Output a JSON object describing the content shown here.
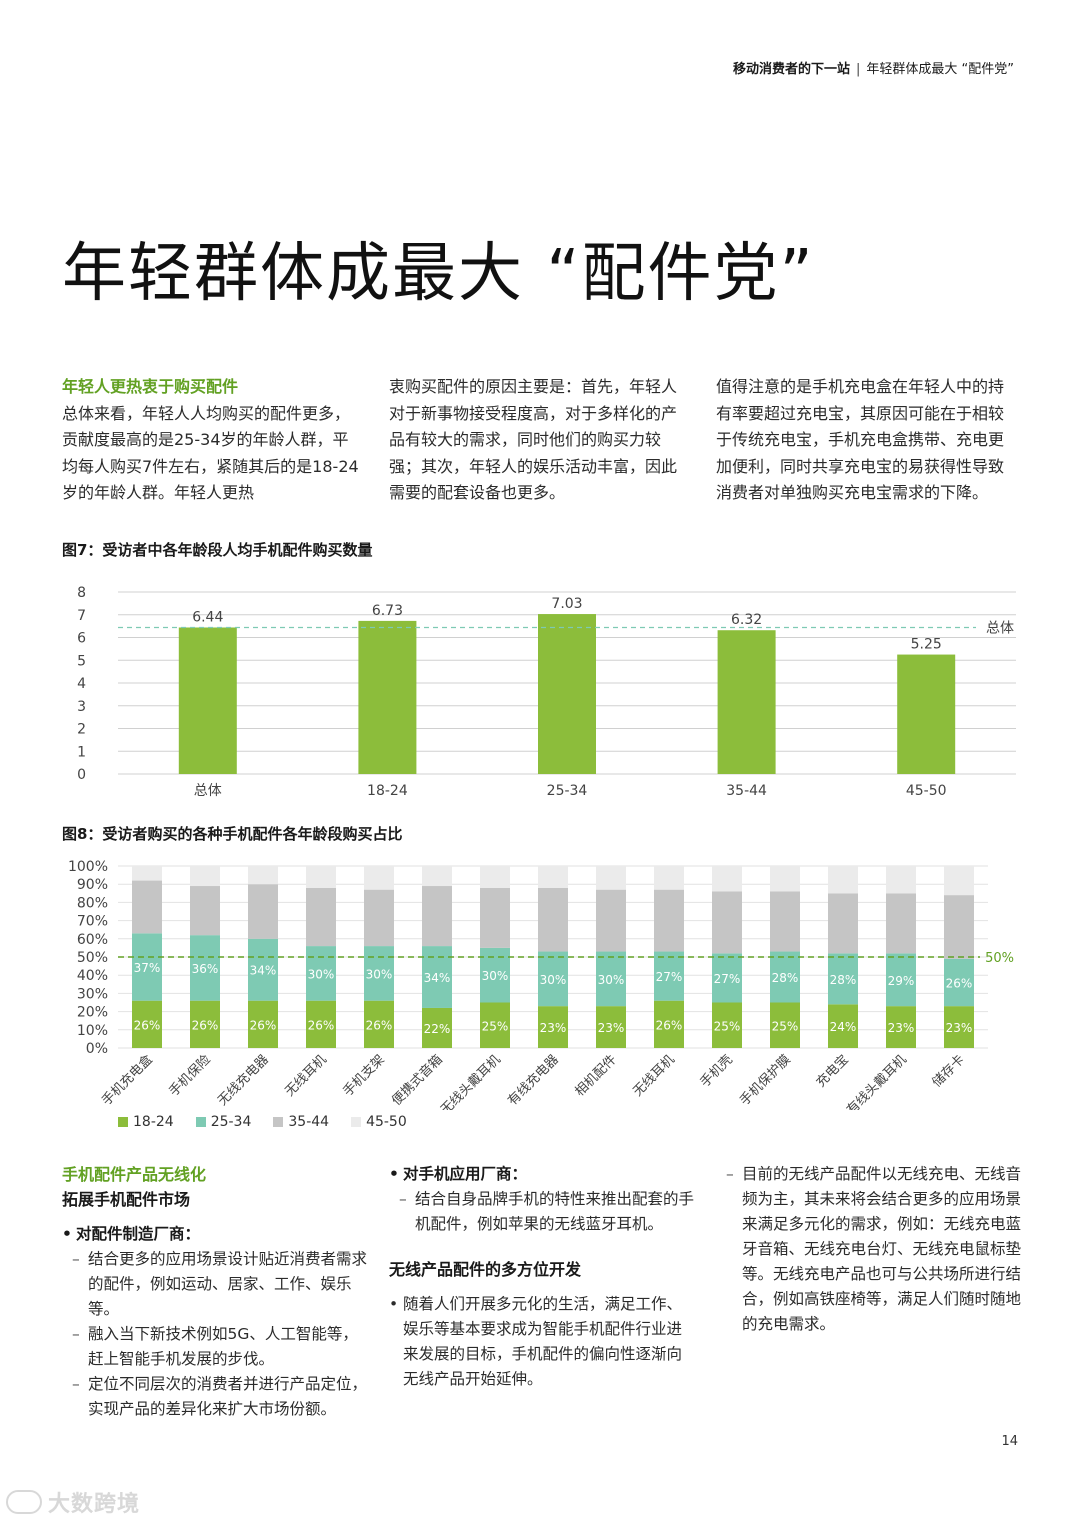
{
  "header": {
    "left": "移动消费者的下一站",
    "sep": "|",
    "right": "年轻群体成最大 “配件党”"
  },
  "title": "年轻群体成最大 “配件党”",
  "intro": {
    "heading": "年轻人更热衷于购买配件",
    "col1_text": "总体来看，年轻人人均购买的配件更多，贡献度最高的是25-34岁的年龄人群，平均每人购买7件左右，紧随其后的是18-24岁的年龄人群。年轻人更热",
    "col2_text": "衷购买配件的原因主要是：首先，年轻人对于新事物接受程度高，对于多样化的产品有较大的需求，同时他们的购买力较强；其次，年轻人的娱乐活动丰富，因此需要的配套设备也更多。",
    "col3_text": "值得注意的是手机充电盒在年轻人中的持有率要超过充电宝，其原因可能在于相较于传统充电宝，手机充电盒携带、充电更加便利，同时共享充电宝的易获得性导致消费者对单独购买充电宝需求的下降。"
  },
  "fig7_title": "图7：受访者中各年龄段人均手机配件购买数量",
  "fig8_title": "图8：受访者购买的各种手机配件各年龄段购买占比",
  "colors": {
    "green": "#8cbd3b",
    "teal": "#7ecab3",
    "gray": "#c5c5c5",
    "light": "#ebebeb",
    "accent": "#62a123"
  },
  "chart_data": [
    {
      "type": "bar",
      "title": "图7：受访者中各年龄段人均手机配件购买数量",
      "categories": [
        "总体",
        "18-24",
        "25-34",
        "35-44",
        "45-50"
      ],
      "values": [
        6.44,
        6.73,
        7.03,
        6.32,
        5.25
      ],
      "value_labels": [
        "6.44",
        "6.73",
        "7.03",
        "6.32",
        "5.25"
      ],
      "ylim": [
        0,
        8
      ],
      "yticks": [
        "0",
        "1",
        "2",
        "3",
        "4",
        "5",
        "6",
        "7",
        "8"
      ],
      "reference_line": {
        "value": 6.44,
        "label": "总体"
      },
      "grid": true
    },
    {
      "type": "bar",
      "stacked": true,
      "title": "图8：受访者购买的各种手机配件各年龄段购买占比",
      "categories": [
        "手机充电盒",
        "手机保险",
        "无线充电器",
        "无线耳机",
        "手机支架",
        "便携式音箱",
        "无线头戴耳机",
        "有线充电器",
        "相机配件",
        "无线耳机",
        "手机壳",
        "手机保护膜",
        "充电宝",
        "有线头戴耳机",
        "储存卡"
      ],
      "series": [
        {
          "name": "18-24",
          "values": [
            26,
            26,
            26,
            26,
            26,
            22,
            25,
            23,
            23,
            26,
            25,
            25,
            24,
            23,
            23
          ],
          "labels": [
            "26%",
            "26%",
            "26%",
            "26%",
            "26%",
            "22%",
            "25%",
            "23%",
            "23%",
            "26%",
            "25%",
            "25%",
            "24%",
            "23%",
            "23%"
          ]
        },
        {
          "name": "25-34",
          "values": [
            37,
            36,
            34,
            30,
            30,
            34,
            30,
            30,
            30,
            27,
            27,
            28,
            28,
            29,
            26
          ],
          "labels": [
            "37%",
            "36%",
            "34%",
            "30%",
            "30%",
            "34%",
            "30%",
            "30%",
            "30%",
            "27%",
            "27%",
            "28%",
            "28%",
            "29%",
            "26%"
          ]
        },
        {
          "name": "35-44",
          "values": [
            29,
            27,
            30,
            32,
            31,
            33,
            33,
            35,
            34,
            34,
            34,
            33,
            33,
            33,
            35
          ]
        },
        {
          "name": "45-50",
          "values": [
            8,
            11,
            10,
            12,
            13,
            11,
            12,
            12,
            13,
            13,
            14,
            14,
            15,
            15,
            16
          ]
        }
      ],
      "ylim": [
        0,
        100
      ],
      "yticks": [
        "0%",
        "10%",
        "20%",
        "30%",
        "40%",
        "50%",
        "60%",
        "70%",
        "80%",
        "90%",
        "100%"
      ],
      "reference_line": {
        "value": 50,
        "label": "50%"
      }
    }
  ],
  "legend": [
    "18-24",
    "25-34",
    "35-44",
    "45-50"
  ],
  "sections": {
    "s1_heading_green": "手机配件产品无线化",
    "s1_heading_bold": "拓展手机配件市场",
    "s1_bullet": "对配件制造厂商：",
    "s1_dash1": "结合更多的应用场景设计贴近消费者需求的配件，例如运动、居家、工作、娱乐等。",
    "s1_dash2": "融入当下新技术例如5G、人工智能等，赶上智能手机发展的步伐。",
    "s1_dash3": "定位不同层次的消费者并进行产品定位，实现产品的差异化来扩大市场份额。",
    "s2_bullet": "对手机应用厂商：",
    "s2_dash1": "结合自身品牌手机的特性来推出配套的手机配件，例如苹果的无线蓝牙耳机。",
    "s2_heading": "无线产品配件的多方位开发",
    "s2_bullet2": "随着人们开展多元化的生活，满足工作、娱乐等基本要求成为智能手机配件行业进来发展的目标，手机配件的偏向性逐渐向无线产品开始延伸。",
    "s3_dash1": "目前的无线产品配件以无线充电、无线音频为主，其未来将会结合更多的应用场景来满足多元化的需求，例如：无线充电蓝牙音箱、无线充电台灯、无线充电鼠标垫等。无线充电产品也可与公共场所进行结合，例如高铁座椅等，满足人们随时随地的充电需求。"
  },
  "page_number": "14",
  "watermark": "大数跨境"
}
